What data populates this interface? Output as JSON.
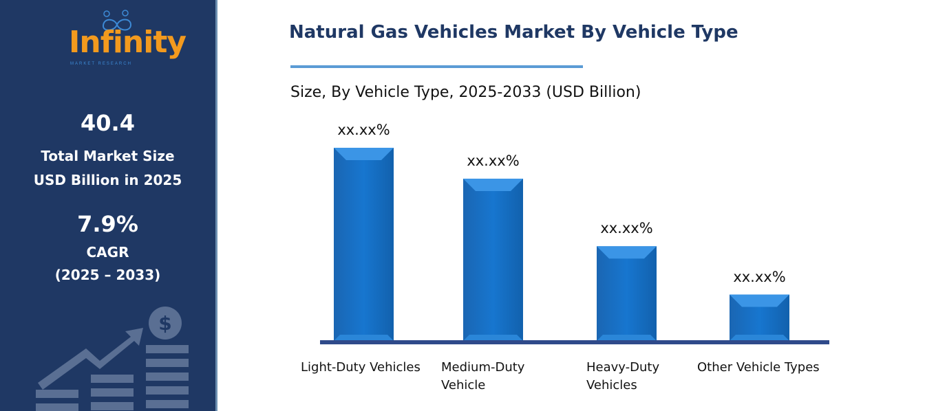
{
  "sidebar": {
    "logo_text": "Infinity",
    "logo_subtext": "MARKET RESEARCH",
    "market_size_value": "40.4",
    "market_size_label_1": "Total Market Size",
    "market_size_label_2": "USD Billion in 2025",
    "cagr_value": "7.9%",
    "cagr_label": "CAGR",
    "cagr_period": "(2025 – 2033)",
    "background_color": "#1f3864",
    "logo_color": "#f39a1e"
  },
  "chart_data": {
    "type": "bar",
    "title": "Natural Gas Vehicles Market By Vehicle Type",
    "subtitle": "Size, By Vehicle Type, 2025-2033 (USD Billion)",
    "categories": [
      "Light-Duty Vehicles",
      "Medium-Duty Vehicle",
      "Heavy-Duty Vehicles",
      "Other Vehicle Types"
    ],
    "category_lines": [
      [
        "Light-Duty Vehicles"
      ],
      [
        "Medium-Duty",
        "Vehicle"
      ],
      [
        "Heavy-Duty",
        "Vehicles"
      ],
      [
        "Other Vehicle Types"
      ]
    ],
    "values": [
      100,
      84,
      49,
      24
    ],
    "data_labels": [
      "xx.xx%",
      "xx.xx%",
      "xx.xx%",
      "xx.xx%"
    ],
    "xlabel": "",
    "ylabel": "",
    "grid": false,
    "bar_color": "#1670c4",
    "title_color": "#1f3864"
  }
}
